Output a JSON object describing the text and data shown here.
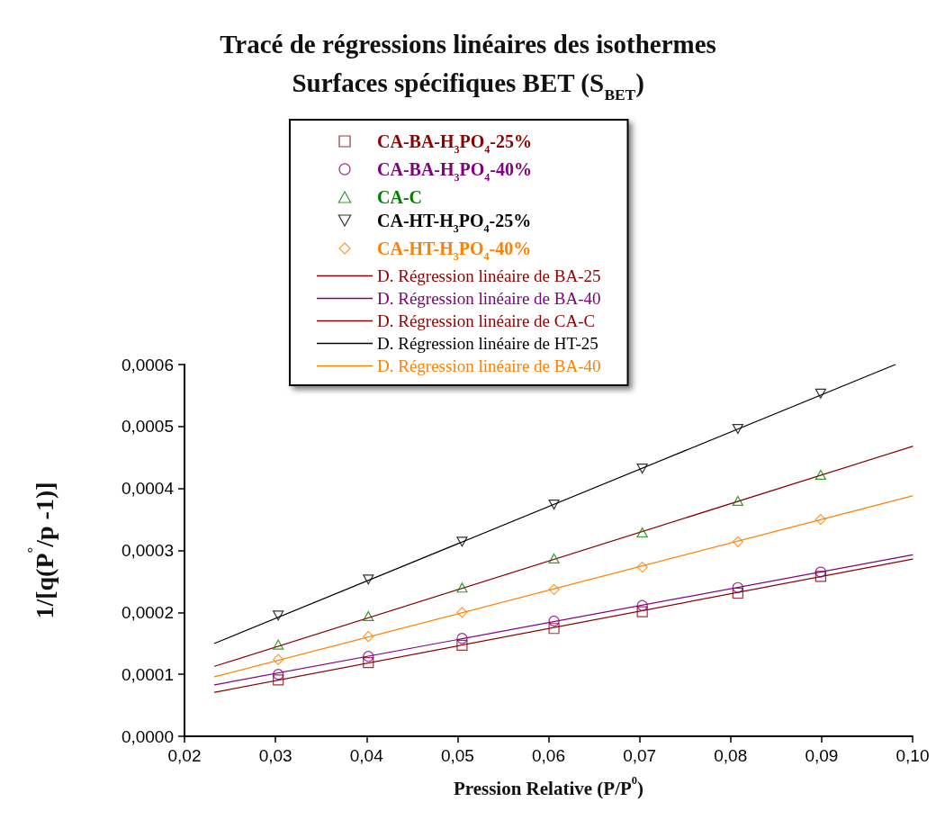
{
  "chart_data": {
    "type": "scatter",
    "title": "Tracé de régressions linéaires des isothermes",
    "subtitle": "Surfaces spécifiques BET (S$_{BET}$)",
    "xlabel": "Pression Relative (P/P$^{0}$)",
    "ylabel": "1/[q(P$^{°}$/p -1)]",
    "x": [
      0.0303,
      0.0402,
      0.0505,
      0.0606,
      0.0703,
      0.0808,
      0.0899
    ],
    "series": [
      {
        "name": "CA-BA-H$_{3}$PO$_{4}$-25%",
        "color": "#8b0000",
        "marker": "square",
        "values": [
          9.1e-05,
          0.000119,
          0.000147,
          0.000174,
          0.000201,
          0.000231,
          0.000258
        ]
      },
      {
        "name": "CA-BA-H$_{3}$PO$_{4}$-40%",
        "color": "#800080",
        "marker": "circle",
        "values": [
          0.0001,
          0.000129,
          0.000158,
          0.000186,
          0.000211,
          0.00024,
          0.000265
        ]
      },
      {
        "name": "CA-C",
        "color": "#008000",
        "marker": "triangle",
        "values": [
          0.000148,
          0.000194,
          0.00024,
          0.000287,
          0.000329,
          0.00038,
          0.000422
        ]
      },
      {
        "name": "CA-HT-H$_{3}$PO$_{4}$-25%",
        "color": "#000000",
        "marker": "triangle-down",
        "values": [
          0.000195,
          0.000253,
          0.000314,
          0.000374,
          0.000432,
          0.000496,
          0.000553
        ]
      },
      {
        "name": "CA-HT-H$_{3}$PO$_{4}$-40%",
        "color": "#ff8000",
        "marker": "diamond",
        "values": [
          0.000124,
          0.000161,
          0.0002,
          0.000237,
          0.000273,
          0.000314,
          0.00035
        ]
      },
      {
        "name": "D. Régression linéaire de BA-25",
        "type": "line",
        "color": "#8b0000",
        "x": [
          0.0233,
          0.1
        ],
        "values": [
          7.1e-05,
          0.000286
        ]
      },
      {
        "name": "D. Régression linéaire de BA-40",
        "type": "line",
        "color": "#800080",
        "x": [
          0.0233,
          0.1
        ],
        "values": [
          8.3e-05,
          0.000293
        ]
      },
      {
        "name": "D. Régression linéaire de CA-C",
        "type": "line",
        "color": "#8b0000",
        "x": [
          0.0233,
          0.1
        ],
        "values": [
          0.000113,
          0.000468
        ]
      },
      {
        "name": "D. Régression linéaire de HT-25",
        "type": "line",
        "color": "#000000",
        "x": [
          0.0233,
          0.0981
        ],
        "values": [
          0.00015,
          0.0006
        ]
      },
      {
        "name": "D. Régression linéaire de BA-40",
        "type": "line",
        "color": "#ff8000",
        "x": [
          0.0233,
          0.1
        ],
        "values": [
          9.6e-05,
          0.000388
        ]
      }
    ],
    "xlim": [
      0.02,
      0.1
    ],
    "xticks": [
      {
        "value": 0.02,
        "label": "0,02"
      },
      {
        "value": 0.03,
        "label": "0,03"
      },
      {
        "value": 0.04,
        "label": "0,04"
      },
      {
        "value": 0.05,
        "label": "0,05"
      },
      {
        "value": 0.06,
        "label": "0,06"
      },
      {
        "value": 0.07,
        "label": "0,07"
      },
      {
        "value": 0.08,
        "label": "0,08"
      },
      {
        "value": 0.09,
        "label": "0,09"
      },
      {
        "value": 0.1,
        "label": "0,10"
      }
    ],
    "ylim": [
      0,
      0.0006
    ],
    "yticks": [
      {
        "value": 0,
        "label": "0,0000"
      },
      {
        "value": 0.0001,
        "label": "0,0001"
      },
      {
        "value": 0.0002,
        "label": "0,0002"
      },
      {
        "value": 0.0003,
        "label": "0,0003"
      },
      {
        "value": 0.0004,
        "label": "0,0004"
      },
      {
        "value": 0.0005,
        "label": "0,0005"
      },
      {
        "value": 0.0006,
        "label": "0,0006"
      }
    ],
    "legend": "top",
    "grid": false,
    "line_style": "solid"
  }
}
